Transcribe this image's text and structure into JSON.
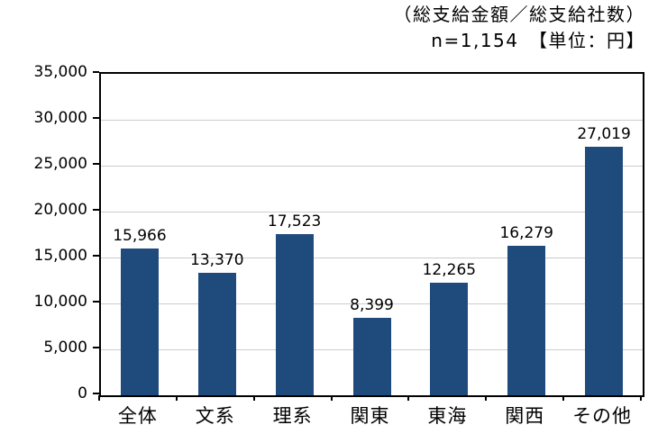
{
  "header": {
    "line1": "（総支給金額／総支給社数）",
    "line2": "n=1,154　【単位：円】"
  },
  "chart_data": {
    "type": "bar",
    "categories": [
      "全体",
      "文系",
      "理系",
      "関東",
      "東海",
      "関西",
      "その他"
    ],
    "values": [
      15966,
      13370,
      17523,
      8399,
      12265,
      16279,
      27019
    ],
    "value_labels": [
      "15,966",
      "13,370",
      "17,523",
      "8,399",
      "12,265",
      "16,279",
      "27,019"
    ],
    "title": "（総支給金額／総支給社数）",
    "subtitle": "n=1,154　【単位：円】",
    "xlabel": "",
    "ylabel": "",
    "ylim": [
      0,
      35000
    ],
    "yticks": [
      0,
      5000,
      10000,
      15000,
      20000,
      25000,
      30000,
      35000
    ],
    "ytick_labels": [
      "0",
      "5,000",
      "10,000",
      "15,000",
      "20,000",
      "25,000",
      "30,000",
      "35,000"
    ],
    "grid": "horizontal",
    "legend": "none",
    "bar_color": "#1F4B7C",
    "grid_color": "#CCCCCC",
    "axis_color": "#000000"
  }
}
